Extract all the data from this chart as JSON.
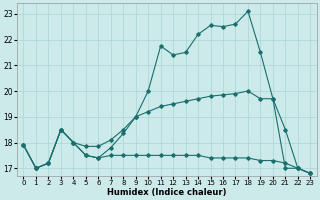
{
  "xlabel": "Humidex (Indice chaleur)",
  "background_color": "#cceaea",
  "grid_color": "#aad4d4",
  "line_color": "#1a6e6e",
  "xlim": [
    -0.5,
    23.5
  ],
  "ylim": [
    16.7,
    23.4
  ],
  "yticks": [
    17,
    18,
    19,
    20,
    21,
    22,
    23
  ],
  "xticks": [
    0,
    1,
    2,
    3,
    4,
    5,
    6,
    7,
    8,
    9,
    10,
    11,
    12,
    13,
    14,
    15,
    16,
    17,
    18,
    19,
    20,
    21,
    22,
    23
  ],
  "line1_y": [
    17.9,
    17.0,
    17.2,
    18.5,
    18.0,
    17.5,
    17.4,
    17.8,
    18.35,
    19.0,
    20.0,
    21.75,
    21.4,
    21.5,
    22.2,
    22.55,
    22.5,
    22.6,
    23.1,
    21.5,
    19.7,
    17.0,
    17.0,
    16.8
  ],
  "line2_y": [
    17.9,
    17.0,
    17.2,
    18.5,
    18.0,
    17.85,
    17.85,
    18.1,
    18.5,
    19.0,
    19.2,
    19.4,
    19.5,
    19.6,
    19.7,
    19.8,
    19.85,
    19.9,
    20.0,
    19.7,
    19.7,
    18.5,
    17.0,
    16.8
  ],
  "line3_y": [
    17.9,
    17.0,
    17.2,
    18.5,
    18.0,
    17.5,
    17.4,
    17.5,
    17.5,
    17.5,
    17.5,
    17.5,
    17.5,
    17.5,
    17.5,
    17.4,
    17.4,
    17.4,
    17.4,
    17.3,
    17.3,
    17.2,
    17.0,
    16.8
  ]
}
